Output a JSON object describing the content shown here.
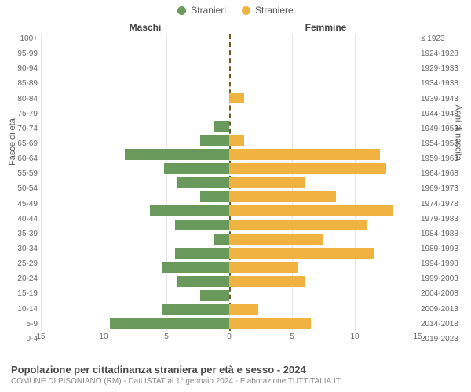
{
  "legend": {
    "male_label": "Stranieri",
    "female_label": "Straniere"
  },
  "subtitles": {
    "male": "Maschi",
    "female": "Femmine"
  },
  "yaxis": {
    "left_title": "Fasce di età",
    "right_title": "Anni di nascita",
    "age_labels": [
      "100+",
      "95-99",
      "90-94",
      "85-89",
      "80-84",
      "75-79",
      "70-74",
      "65-69",
      "60-64",
      "55-59",
      "50-54",
      "45-49",
      "40-44",
      "35-39",
      "30-34",
      "25-29",
      "20-24",
      "15-19",
      "10-14",
      "5-9",
      "0-4"
    ],
    "birth_labels": [
      "≤ 1923",
      "1924-1928",
      "1929-1933",
      "1934-1938",
      "1939-1943",
      "1944-1948",
      "1949-1953",
      "1954-1958",
      "1959-1963",
      "1964-1968",
      "1969-1973",
      "1974-1978",
      "1979-1983",
      "1984-1988",
      "1989-1993",
      "1994-1998",
      "1999-2003",
      "2004-2008",
      "2009-2013",
      "2014-2018",
      "2019-2023"
    ]
  },
  "xaxis": {
    "ticks_left": [
      15,
      10,
      5,
      0
    ],
    "ticks_right": [
      5,
      10,
      15
    ],
    "max": 15
  },
  "colors": {
    "male": "#6a9a5b",
    "female": "#f0b341",
    "background": "#ffffff",
    "grid": "#e6e6e6",
    "center_dash": "#6b5b2a",
    "text_muted": "#8a8a8a",
    "text": "#4a4a4a"
  },
  "chart": {
    "type": "population-pyramid",
    "xlim": [
      -15,
      15
    ],
    "bar_height_ratio": 0.75,
    "rows": [
      {
        "age": "100+",
        "male": 0,
        "female": 0
      },
      {
        "age": "95-99",
        "male": 0,
        "female": 0
      },
      {
        "age": "90-94",
        "male": 0,
        "female": 0
      },
      {
        "age": "85-89",
        "male": 0,
        "female": 0
      },
      {
        "age": "80-84",
        "male": 0,
        "female": 1.2
      },
      {
        "age": "75-79",
        "male": 0,
        "female": 0
      },
      {
        "age": "70-74",
        "male": 1.2,
        "female": 0
      },
      {
        "age": "65-69",
        "male": 2.3,
        "female": 1.2
      },
      {
        "age": "60-64",
        "male": 8.3,
        "female": 12
      },
      {
        "age": "55-59",
        "male": 5.2,
        "female": 12.5
      },
      {
        "age": "50-54",
        "male": 4.2,
        "female": 6
      },
      {
        "age": "45-49",
        "male": 2.3,
        "female": 8.5
      },
      {
        "age": "40-44",
        "male": 6.3,
        "female": 13
      },
      {
        "age": "35-39",
        "male": 4.3,
        "female": 11
      },
      {
        "age": "30-34",
        "male": 1.2,
        "female": 7.5
      },
      {
        "age": "25-29",
        "male": 4.3,
        "female": 11.5
      },
      {
        "age": "20-24",
        "male": 5.3,
        "female": 5.5
      },
      {
        "age": "15-19",
        "male": 4.2,
        "female": 6
      },
      {
        "age": "10-14",
        "male": 2.3,
        "female": 0
      },
      {
        "age": "5-9",
        "male": 5.3,
        "female": 2.3
      },
      {
        "age": "0-4",
        "male": 9.5,
        "female": 6.5
      }
    ]
  },
  "footer": {
    "title": "Popolazione per cittadinanza straniera per età e sesso - 2024",
    "subtitle": "COMUNE DI PISONIANO (RM) - Dati ISTAT al 1° gennaio 2024 - Elaborazione TUTTITALIA.IT"
  }
}
